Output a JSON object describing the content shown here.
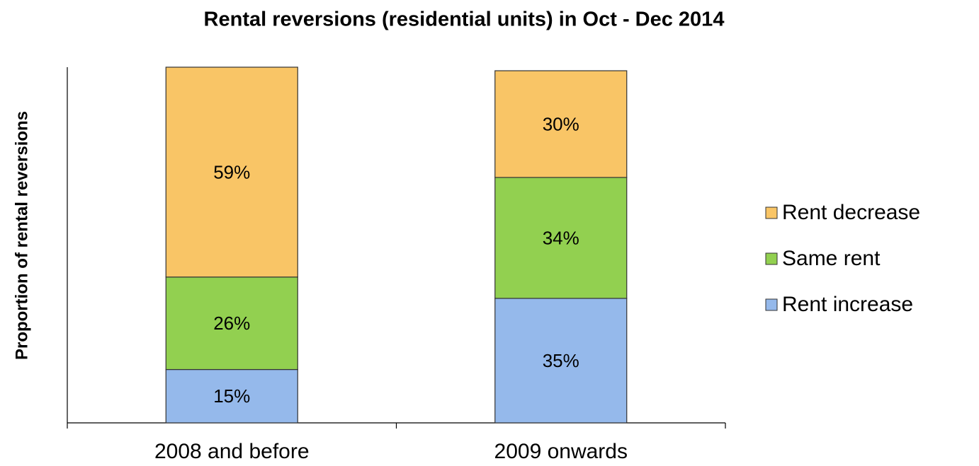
{
  "chart_data": {
    "type": "stacked_bar",
    "title": "Rental reversions (residential units) in Oct - Dec 2014",
    "y_label": "Proportion of rental reversions",
    "categories": [
      "2008 and before",
      "2009 onwards"
    ],
    "series": [
      {
        "name": "Rent increase",
        "color": "#95b9eb",
        "values": [
          15,
          35
        ],
        "value_labels": [
          "15%",
          "35%"
        ]
      },
      {
        "name": "Same rent",
        "color": "#92d050",
        "values": [
          26,
          34
        ],
        "value_labels": [
          "26%",
          "34%"
        ]
      },
      {
        "name": "Rent decrease",
        "color": "#f9c566",
        "values": [
          59,
          30
        ],
        "value_labels": [
          "59%",
          "30%"
        ]
      }
    ],
    "ylim": [
      0,
      100
    ],
    "legend": "right"
  }
}
